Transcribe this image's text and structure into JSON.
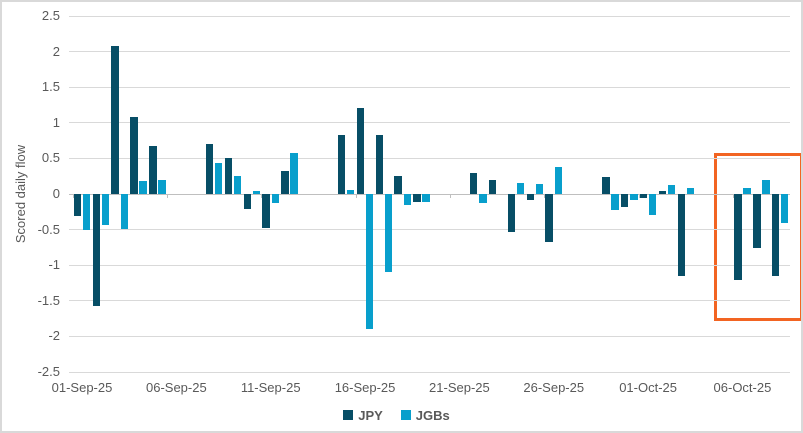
{
  "chart_data": {
    "type": "bar",
    "title": "",
    "ylabel": "Scored daily flow",
    "xlabel": "",
    "ylim": [
      -2.5,
      2.5
    ],
    "y_tick_labels": [
      "2.5",
      "2",
      "1.5",
      "1",
      "0.5",
      "0",
      "-0.5",
      "-1",
      "-1.5",
      "-2",
      "-2.5"
    ],
    "y_tick_values": [
      2.5,
      2,
      1.5,
      1,
      0.5,
      0,
      -0.5,
      -1,
      -1.5,
      -2,
      -2.5
    ],
    "x_tick_labels": [
      "01-Sep-25",
      "06-Sep-25",
      "11-Sep-25",
      "16-Sep-25",
      "21-Sep-25",
      "26-Sep-25",
      "01-Oct-25",
      "06-Oct-25"
    ],
    "x_tick_day_offsets": [
      0,
      5,
      10,
      15,
      20,
      25,
      30,
      35
    ],
    "legend_position": "bottom-center",
    "grid": true,
    "categories": [
      "01-Sep-25",
      "02-Sep-25",
      "03-Sep-25",
      "04-Sep-25",
      "05-Sep-25",
      "08-Sep-25",
      "09-Sep-25",
      "10-Sep-25",
      "11-Sep-25",
      "12-Sep-25",
      "15-Sep-25",
      "16-Sep-25",
      "17-Sep-25",
      "18-Sep-25",
      "19-Sep-25",
      "22-Sep-25",
      "23-Sep-25",
      "24-Sep-25",
      "25-Sep-25",
      "26-Sep-25",
      "29-Sep-25",
      "30-Sep-25",
      "01-Oct-25",
      "02-Oct-25",
      "03-Oct-25",
      "06-Oct-25",
      "07-Oct-25",
      "08-Oct-25"
    ],
    "category_day_offsets": [
      0,
      1,
      2,
      3,
      4,
      7,
      8,
      9,
      10,
      11,
      14,
      15,
      16,
      17,
      18,
      21,
      22,
      23,
      24,
      25,
      28,
      29,
      30,
      31,
      32,
      35,
      36,
      37
    ],
    "series": [
      {
        "name": "JPY",
        "color": "#074e66",
        "values": [
          -0.31,
          -1.57,
          2.08,
          1.08,
          0.68,
          0.7,
          0.51,
          -0.21,
          -0.48,
          0.33,
          0.83,
          1.21,
          0.83,
          0.25,
          -0.11,
          0.3,
          0.2,
          -0.53,
          -0.09,
          -0.68,
          0.24,
          -0.18,
          -0.05,
          0.04,
          -1.15,
          -1.21,
          -0.76,
          -1.15
        ]
      },
      {
        "name": "JGBs",
        "color": "#089fcc",
        "values": [
          -0.51,
          -0.43,
          -0.49,
          0.18,
          0.2,
          0.43,
          0.25,
          0.04,
          -0.13,
          0.58,
          0.06,
          -1.9,
          -1.1,
          -0.15,
          -0.11,
          -0.12,
          0.0,
          0.15,
          0.14,
          0.38,
          -0.23,
          -0.08,
          -0.29,
          0.13,
          0.08,
          0.09,
          0.2,
          -0.41
        ]
      }
    ],
    "annotation": {
      "type": "highlight-box",
      "highlights_from": "06-Oct-25",
      "highlights_to": "08-Oct-25",
      "color": "#f26422"
    }
  },
  "colors": {
    "axis_text": "#595959",
    "gridline": "#d9d9d9",
    "zero_axis": "#bfbfbf",
    "background": "#ffffff",
    "border": "#d9d9d9",
    "highlight": "#f26422"
  }
}
